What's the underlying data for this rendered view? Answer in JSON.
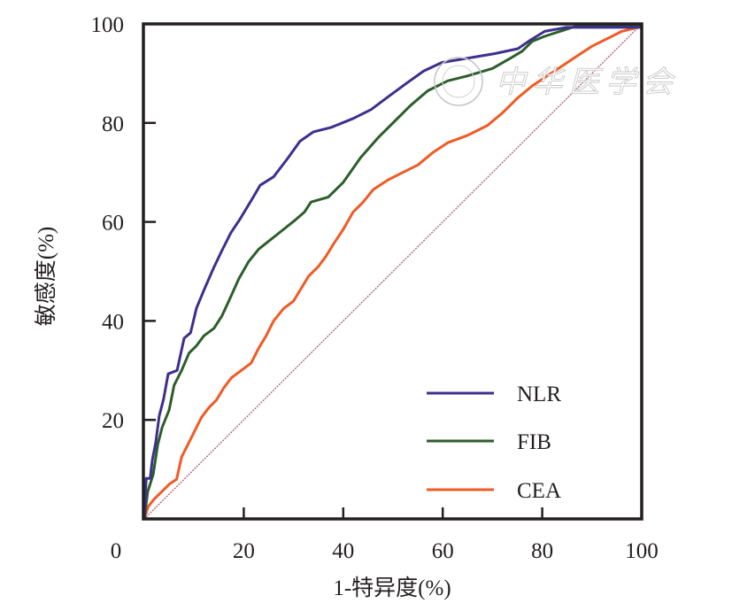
{
  "chart_data": {
    "type": "line",
    "title": "",
    "xlabel": "1-特异度(%)",
    "ylabel": "敏感度(%)",
    "xlim": [
      0,
      100
    ],
    "ylim": [
      0,
      100
    ],
    "x_ticks": [
      0,
      20,
      40,
      60,
      80,
      100
    ],
    "x_tick_labels": [
      "0",
      "20",
      "40",
      "60",
      "80",
      "100"
    ],
    "y_ticks": [
      20,
      40,
      60,
      80,
      100
    ],
    "y_tick_labels": [
      "20",
      "40",
      "60",
      "80",
      "100"
    ],
    "grid": false,
    "legend_position": "bottom-right",
    "series": [
      {
        "name": "NLR",
        "color": "#3d2f8f",
        "x": [
          0,
          0.4,
          1.2,
          1.6,
          2.3,
          3.0,
          3.9,
          4.8,
          6.6,
          8.0,
          9.3,
          10.5,
          12.0,
          13.9,
          15.6,
          17.4,
          19.2,
          21.9,
          23.3,
          26.0,
          28.8,
          31.3,
          34.0,
          37.6,
          42.0,
          45.6,
          49.2,
          52.7,
          56.2,
          59.8,
          65.1,
          70.5,
          75.1,
          77.6,
          80.5,
          84.9,
          100
        ],
        "y": [
          0,
          8.2,
          8.2,
          11.8,
          15.4,
          20.8,
          24.3,
          29.3,
          30.0,
          36.5,
          37.6,
          42.6,
          46.2,
          50.6,
          54.2,
          57.8,
          60.5,
          65.0,
          67.4,
          69.1,
          72.8,
          76.3,
          78.2,
          79.1,
          80.9,
          82.7,
          85.4,
          88.0,
          90.5,
          92.2,
          93.1,
          94.0,
          95.0,
          96.7,
          98.5,
          99.3,
          99.3
        ]
      },
      {
        "name": "FIB",
        "color": "#2c5e2a",
        "x": [
          0,
          0.7,
          1.8,
          2.7,
          3.6,
          5.0,
          6.0,
          7.5,
          9.0,
          10.5,
          12.0,
          14.0,
          15.6,
          17.0,
          19.0,
          21.0,
          23.0,
          25.5,
          28.0,
          30.5,
          32.2,
          33.5,
          37.0,
          40.0,
          43.5,
          47.0,
          50.5,
          53.5,
          57.0,
          61.0,
          65.0,
          70.0,
          73.5,
          76.0,
          78.0,
          80.5,
          87.0,
          100
        ],
        "y": [
          0,
          5.5,
          9.0,
          15.0,
          18.5,
          22.0,
          27.0,
          30.0,
          33.5,
          35.0,
          37.0,
          38.5,
          41.0,
          44.0,
          48.5,
          52.0,
          54.5,
          56.5,
          58.5,
          60.5,
          62.0,
          64.0,
          65.0,
          68.0,
          73.0,
          77.0,
          80.5,
          83.5,
          86.5,
          88.5,
          89.5,
          91.0,
          93.0,
          94.5,
          96.5,
          97.5,
          99.6,
          99.6
        ]
      },
      {
        "name": "CEA",
        "color": "#f15a24",
        "x": [
          0,
          0.8,
          2.0,
          3.5,
          5.0,
          6.5,
          7.5,
          8.5,
          10.0,
          11.5,
          13.0,
          14.5,
          16.0,
          17.5,
          19.5,
          21.5,
          23.0,
          24.5,
          26.0,
          28.0,
          30.0,
          31.5,
          33.0,
          35.0,
          36.5,
          38.0,
          40.0,
          42.0,
          44.0,
          46.0,
          49.0,
          52.0,
          55.0,
          58.0,
          61.0,
          65.0,
          69.0,
          72.0,
          75.0,
          78.0,
          81.0,
          84.0,
          87.0,
          90.0,
          93.0,
          96.0,
          100
        ],
        "y": [
          0,
          2.5,
          4.0,
          5.5,
          7.0,
          8.0,
          12.5,
          14.5,
          17.5,
          20.5,
          22.5,
          24.0,
          26.5,
          28.5,
          30.0,
          31.5,
          34.5,
          37.0,
          40.0,
          42.5,
          44.0,
          46.5,
          49.0,
          51.0,
          53.0,
          55.5,
          58.5,
          62.0,
          64.0,
          66.5,
          68.5,
          70.0,
          71.5,
          74.0,
          76.0,
          77.5,
          79.5,
          82.0,
          85.0,
          87.5,
          89.5,
          91.5,
          93.5,
          95.5,
          97.0,
          98.5,
          99.5
        ]
      },
      {
        "name": "reference",
        "color": "#b5667a",
        "x": [
          0,
          100
        ],
        "y": [
          0,
          100
        ]
      }
    ]
  },
  "watermark": {
    "text": "中华医学会"
  }
}
